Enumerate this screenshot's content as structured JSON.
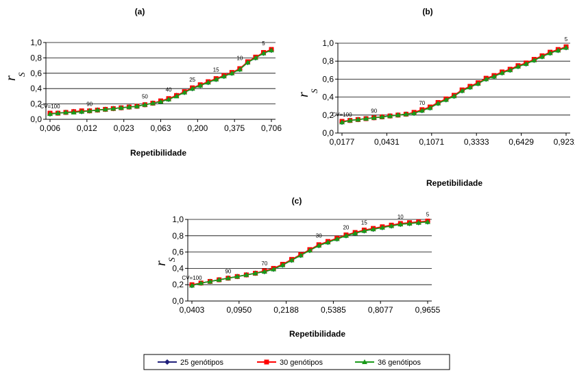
{
  "chart_data": [
    {
      "panel": "(a)",
      "type": "line",
      "xlabel": "Repetibilidade",
      "ylabel": "r",
      "ylabel_sub": "S",
      "ylim": [
        0,
        1.0
      ],
      "yticks": [
        "0,0",
        "0,2",
        "0,4",
        "0,6",
        "0,8",
        "1,0"
      ],
      "xticks": [
        "0,006",
        "0,012",
        "0,023",
        "0,063",
        "0,200",
        "0,375",
        "0,706"
      ],
      "grid": true,
      "annotations": [
        {
          "label": "CV=100",
          "at_index": 0,
          "y": 0.08
        },
        {
          "label": "90",
          "at_index": 5,
          "y": 0.11
        },
        {
          "label": "50",
          "at_index": 12,
          "y": 0.21
        },
        {
          "label": "40",
          "at_index": 15,
          "y": 0.3
        },
        {
          "label": "25",
          "at_index": 18,
          "y": 0.43
        },
        {
          "label": "15",
          "at_index": 21,
          "y": 0.56
        },
        {
          "label": "10",
          "at_index": 24,
          "y": 0.71
        },
        {
          "label": "5",
          "at_index": 27,
          "y": 0.9
        }
      ],
      "series": [
        {
          "name": "25 genótipos",
          "values": [
            0.07,
            0.08,
            0.09,
            0.1,
            0.1,
            0.11,
            0.12,
            0.13,
            0.14,
            0.15,
            0.16,
            0.17,
            0.19,
            0.21,
            0.23,
            0.26,
            0.31,
            0.35,
            0.4,
            0.44,
            0.48,
            0.52,
            0.56,
            0.6,
            0.65,
            0.74,
            0.8,
            0.86,
            0.9
          ]
        },
        {
          "name": "30 genótipos",
          "values": [
            0.08,
            0.08,
            0.09,
            0.1,
            0.11,
            0.11,
            0.12,
            0.13,
            0.14,
            0.15,
            0.16,
            0.17,
            0.19,
            0.21,
            0.24,
            0.27,
            0.31,
            0.36,
            0.41,
            0.45,
            0.49,
            0.53,
            0.57,
            0.61,
            0.66,
            0.75,
            0.81,
            0.87,
            0.91
          ]
        },
        {
          "name": "36 genótipos",
          "values": [
            0.07,
            0.08,
            0.09,
            0.09,
            0.1,
            0.11,
            0.12,
            0.13,
            0.14,
            0.15,
            0.16,
            0.17,
            0.19,
            0.21,
            0.23,
            0.26,
            0.3,
            0.35,
            0.4,
            0.44,
            0.48,
            0.52,
            0.56,
            0.6,
            0.65,
            0.74,
            0.8,
            0.86,
            0.9
          ]
        }
      ]
    },
    {
      "panel": "(b)",
      "type": "line",
      "xlabel": "Repetibilidade",
      "ylabel": "r",
      "ylabel_sub": "S",
      "ylim": [
        0,
        1.0
      ],
      "yticks": [
        "0,0",
        "0,2",
        "0,4",
        "0,6",
        "0,8",
        "1,0"
      ],
      "xticks": [
        "0,0177",
        "0,0431",
        "0,1071",
        "0,3333",
        "0,6429",
        "0,9231"
      ],
      "grid": true,
      "annotations": [
        {
          "label": "CV=100",
          "at_index": 0,
          "y": 0.13
        },
        {
          "label": "90",
          "at_index": 4,
          "y": 0.17
        },
        {
          "label": "70",
          "at_index": 10,
          "y": 0.26
        },
        {
          "label": "5",
          "at_index": 28,
          "y": 0.97
        }
      ],
      "series": [
        {
          "name": "25 genótipos",
          "values": [
            0.12,
            0.14,
            0.15,
            0.16,
            0.17,
            0.18,
            0.19,
            0.2,
            0.21,
            0.22,
            0.25,
            0.28,
            0.33,
            0.37,
            0.41,
            0.47,
            0.51,
            0.55,
            0.6,
            0.63,
            0.67,
            0.7,
            0.74,
            0.77,
            0.81,
            0.85,
            0.89,
            0.92,
            0.95
          ]
        },
        {
          "name": "30 genótipos",
          "values": [
            0.13,
            0.14,
            0.15,
            0.16,
            0.17,
            0.18,
            0.19,
            0.2,
            0.21,
            0.23,
            0.26,
            0.29,
            0.34,
            0.38,
            0.42,
            0.48,
            0.52,
            0.56,
            0.61,
            0.64,
            0.68,
            0.71,
            0.75,
            0.78,
            0.82,
            0.86,
            0.9,
            0.93,
            0.96
          ]
        },
        {
          "name": "36 genótipos",
          "values": [
            0.12,
            0.14,
            0.15,
            0.16,
            0.17,
            0.18,
            0.19,
            0.2,
            0.21,
            0.22,
            0.25,
            0.28,
            0.33,
            0.37,
            0.41,
            0.47,
            0.51,
            0.55,
            0.6,
            0.63,
            0.67,
            0.7,
            0.74,
            0.77,
            0.81,
            0.85,
            0.89,
            0.92,
            0.95
          ]
        }
      ]
    },
    {
      "panel": "(c)",
      "type": "line",
      "xlabel": "Repetibilidade",
      "ylabel": "r",
      "ylabel_sub": "S",
      "ylim": [
        0,
        1.0
      ],
      "yticks": [
        "0,0",
        "0,2",
        "0,4",
        "0,6",
        "0,8",
        "1,0"
      ],
      "xticks": [
        "0,0403",
        "0,0950",
        "0,2188",
        "0,5385",
        "0,8077",
        "0,9655"
      ],
      "grid": true,
      "annotations": [
        {
          "label": "CV=100",
          "at_index": 0,
          "y": 0.2
        },
        {
          "label": "90",
          "at_index": 4,
          "y": 0.28
        },
        {
          "label": "70",
          "at_index": 8,
          "y": 0.38
        },
        {
          "label": "30",
          "at_index": 14,
          "y": 0.72
        },
        {
          "label": "20",
          "at_index": 17,
          "y": 0.82
        },
        {
          "label": "15",
          "at_index": 19,
          "y": 0.88
        },
        {
          "label": "10",
          "at_index": 23,
          "y": 0.95
        },
        {
          "label": "5",
          "at_index": 26,
          "y": 0.98
        }
      ],
      "series": [
        {
          "name": "25 genótipos",
          "values": [
            0.19,
            0.22,
            0.24,
            0.26,
            0.28,
            0.3,
            0.32,
            0.34,
            0.36,
            0.39,
            0.44,
            0.5,
            0.56,
            0.62,
            0.68,
            0.72,
            0.76,
            0.8,
            0.83,
            0.86,
            0.88,
            0.9,
            0.92,
            0.94,
            0.95,
            0.96,
            0.97
          ]
        },
        {
          "name": "30 genótipos",
          "values": [
            0.2,
            0.22,
            0.24,
            0.26,
            0.28,
            0.3,
            0.32,
            0.34,
            0.37,
            0.4,
            0.45,
            0.51,
            0.57,
            0.63,
            0.69,
            0.73,
            0.77,
            0.81,
            0.84,
            0.87,
            0.89,
            0.91,
            0.93,
            0.95,
            0.96,
            0.97,
            0.98
          ]
        },
        {
          "name": "36 genótipos",
          "values": [
            0.19,
            0.22,
            0.24,
            0.26,
            0.28,
            0.3,
            0.32,
            0.34,
            0.36,
            0.39,
            0.44,
            0.5,
            0.56,
            0.62,
            0.68,
            0.72,
            0.76,
            0.8,
            0.83,
            0.86,
            0.88,
            0.9,
            0.92,
            0.94,
            0.95,
            0.96,
            0.97
          ]
        }
      ]
    }
  ],
  "legend": {
    "entries": [
      {
        "label": "25 genótipos",
        "color": "#1f1f7a",
        "marker": "diamond"
      },
      {
        "label": "30 genótipos",
        "color": "#ff0000",
        "marker": "square"
      },
      {
        "label": "36 genótipos",
        "color": "#1a9a1a",
        "marker": "triangle"
      }
    ]
  }
}
